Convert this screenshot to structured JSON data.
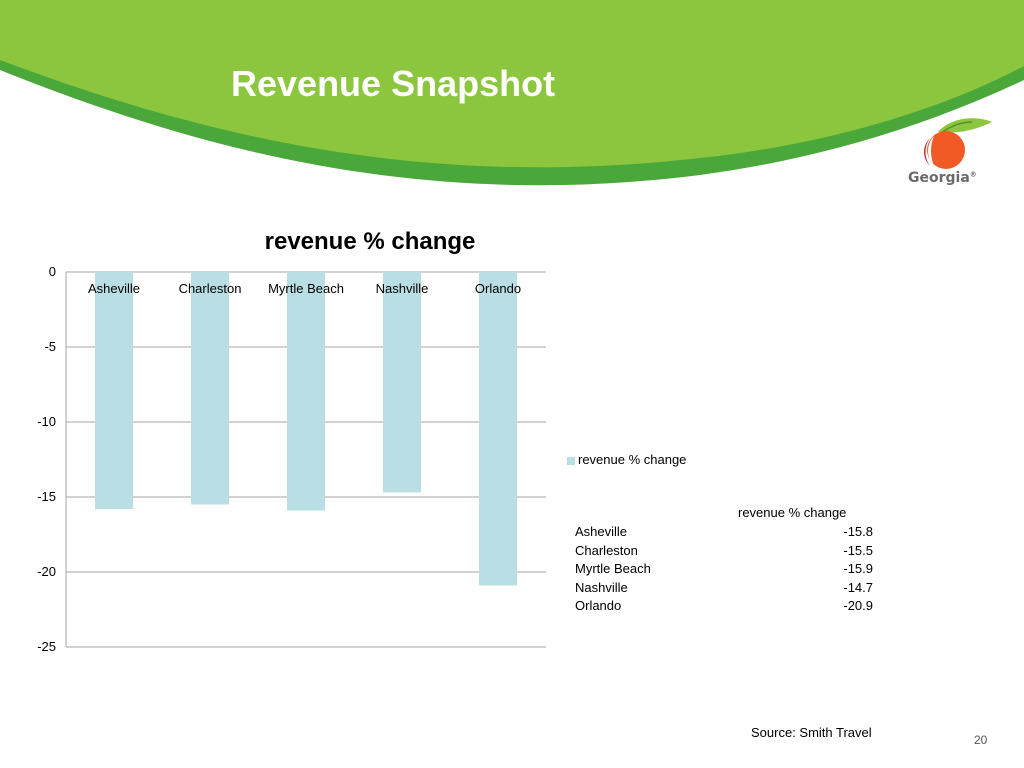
{
  "slide": {
    "title": "Revenue Snapshot",
    "logo_text": "Georgia",
    "logo_mark": "®",
    "source": "Source: Smith Travel",
    "page_number": "20"
  },
  "colors": {
    "banner_light": "#8cc63f",
    "banner_dark": "#4aa83a",
    "bar": "#b9dfe4",
    "grid": "#a6a6a6"
  },
  "chart_data": {
    "type": "bar",
    "title": "revenue % change",
    "categories": [
      "Asheville",
      "Charleston",
      "Myrtle Beach",
      "Nashville",
      "Orlando"
    ],
    "series": [
      {
        "name": "revenue % change",
        "values": [
          -15.8,
          -15.5,
          -15.9,
          -14.7,
          -20.9
        ]
      }
    ],
    "ylim": [
      -25,
      0
    ],
    "yticks": [
      0,
      -5,
      -10,
      -15,
      -20,
      -25
    ],
    "xlabel": "",
    "ylabel": "",
    "grid": true,
    "legend_position": "right",
    "table": {
      "header": "revenue % change",
      "rows": [
        {
          "category": "Asheville",
          "value": "-15.8"
        },
        {
          "category": "Charleston",
          "value": "-15.5"
        },
        {
          "category": "Myrtle Beach",
          "value": "-15.9"
        },
        {
          "category": "Nashville",
          "value": "-14.7"
        },
        {
          "category": "Orlando",
          "value": "-20.9"
        }
      ]
    }
  }
}
